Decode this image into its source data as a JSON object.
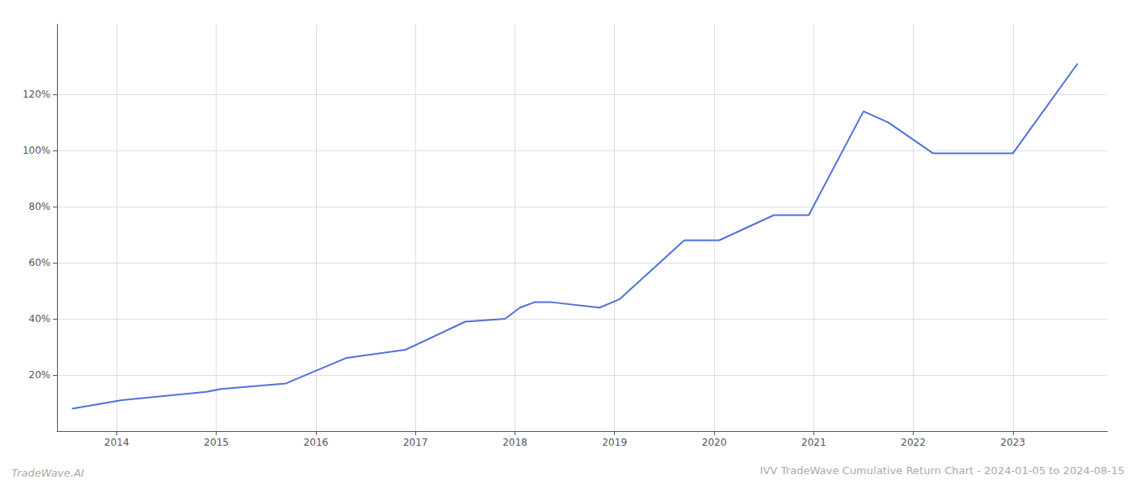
{
  "chart_data": {
    "type": "line",
    "title": "IVV TradeWave Cumulative Return Chart - 2024-01-05 to 2024-08-15",
    "annotations": [
      "TradeWave.AI"
    ],
    "x": [
      2013.55,
      2014.05,
      2014.9,
      2015.05,
      2015.7,
      2016.3,
      2016.9,
      2017.5,
      2017.9,
      2018.05,
      2018.2,
      2018.35,
      2018.85,
      2019.05,
      2019.7,
      2020.0,
      2020.05,
      2020.6,
      2020.95,
      2021.5,
      2021.75,
      2022.2,
      2022.45,
      2023.0,
      2023.65
    ],
    "values": [
      8,
      11,
      14,
      15,
      17,
      26,
      29,
      39,
      40,
      44,
      46,
      46,
      44,
      47,
      68,
      68,
      68,
      77,
      77,
      114,
      110,
      99,
      99,
      99,
      131
    ],
    "xlim": [
      2013.4,
      2023.95
    ],
    "xticks": [
      2014,
      2015,
      2016,
      2017,
      2018,
      2019,
      2020,
      2021,
      2022,
      2023
    ],
    "ylim": [
      0,
      145
    ],
    "yticks": [
      {
        "value": 20,
        "label": "20%"
      },
      {
        "value": 40,
        "label": "40%"
      },
      {
        "value": 60,
        "label": "60%"
      },
      {
        "value": 80,
        "label": "80%"
      },
      {
        "value": 100,
        "label": "100%"
      },
      {
        "value": 120,
        "label": "120%"
      }
    ],
    "grid": true
  }
}
